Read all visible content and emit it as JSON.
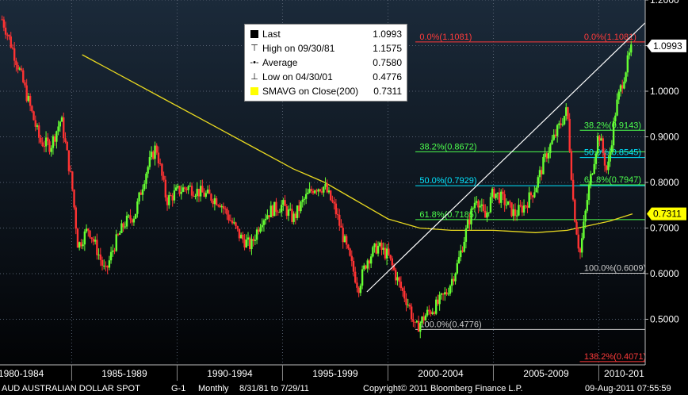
{
  "chart_data": {
    "type": "candlestick",
    "security": "AUD  AUSTRALIAN DOLLAR SPOT",
    "y_ticks": [
      "1.2000",
      "1.1000",
      "1.0000",
      "0.9000",
      "0.8000",
      "0.7000",
      "0.6000",
      "0.5000"
    ],
    "ylim": [
      0.4,
      1.2
    ],
    "x_ticks": [
      "1980-1984",
      "1985-1989",
      "1990-1994",
      "1995-1999",
      "2000-2004",
      "2005-2009",
      "2010-201"
    ],
    "legend": {
      "last": {
        "label": "Last",
        "value": "1.0993"
      },
      "high": {
        "label": "High on 09/30/81",
        "value": "1.1575"
      },
      "average": {
        "label": "Average",
        "value": "0.7580"
      },
      "low": {
        "label": "Low on 04/30/01",
        "value": "0.4776"
      },
      "sma": {
        "label": "SMAVG on Close(200)",
        "value": "0.7311"
      }
    },
    "price_series": [
      {
        "year": 1981.7,
        "value": 1.1575
      },
      {
        "year": 1982.0,
        "value": 1.12
      },
      {
        "year": 1982.5,
        "value": 1.05
      },
      {
        "year": 1983.0,
        "value": 0.97
      },
      {
        "year": 1983.5,
        "value": 0.89
      },
      {
        "year": 1984.0,
        "value": 0.88
      },
      {
        "year": 1984.5,
        "value": 0.94
      },
      {
        "year": 1985.0,
        "value": 0.8
      },
      {
        "year": 1985.3,
        "value": 0.66
      },
      {
        "year": 1985.8,
        "value": 0.7
      },
      {
        "year": 1986.3,
        "value": 0.64
      },
      {
        "year": 1986.6,
        "value": 0.6
      },
      {
        "year": 1987.0,
        "value": 0.66
      },
      {
        "year": 1987.5,
        "value": 0.71
      },
      {
        "year": 1988.0,
        "value": 0.73
      },
      {
        "year": 1988.5,
        "value": 0.82
      },
      {
        "year": 1989.0,
        "value": 0.88
      },
      {
        "year": 1989.5,
        "value": 0.76
      },
      {
        "year": 1990.0,
        "value": 0.78
      },
      {
        "year": 1990.5,
        "value": 0.79
      },
      {
        "year": 1991.0,
        "value": 0.78
      },
      {
        "year": 1991.5,
        "value": 0.77
      },
      {
        "year": 1992.0,
        "value": 0.76
      },
      {
        "year": 1992.5,
        "value": 0.72
      },
      {
        "year": 1993.0,
        "value": 0.68
      },
      {
        "year": 1993.5,
        "value": 0.66
      },
      {
        "year": 1994.0,
        "value": 0.72
      },
      {
        "year": 1994.5,
        "value": 0.74
      },
      {
        "year": 1995.0,
        "value": 0.75
      },
      {
        "year": 1995.5,
        "value": 0.72
      },
      {
        "year": 1996.0,
        "value": 0.76
      },
      {
        "year": 1996.5,
        "value": 0.79
      },
      {
        "year": 1997.0,
        "value": 0.79
      },
      {
        "year": 1997.5,
        "value": 0.74
      },
      {
        "year": 1998.0,
        "value": 0.66
      },
      {
        "year": 1998.6,
        "value": 0.57
      },
      {
        "year": 1999.0,
        "value": 0.63
      },
      {
        "year": 1999.5,
        "value": 0.66
      },
      {
        "year": 2000.0,
        "value": 0.64
      },
      {
        "year": 2000.5,
        "value": 0.58
      },
      {
        "year": 2001.0,
        "value": 0.53
      },
      {
        "year": 2001.3,
        "value": 0.4776
      },
      {
        "year": 2001.8,
        "value": 0.51
      },
      {
        "year": 2002.3,
        "value": 0.53
      },
      {
        "year": 2002.8,
        "value": 0.56
      },
      {
        "year": 2003.3,
        "value": 0.62
      },
      {
        "year": 2003.8,
        "value": 0.71
      },
      {
        "year": 2004.2,
        "value": 0.77
      },
      {
        "year": 2004.6,
        "value": 0.72
      },
      {
        "year": 2005.0,
        "value": 0.78
      },
      {
        "year": 2005.5,
        "value": 0.76
      },
      {
        "year": 2006.0,
        "value": 0.73
      },
      {
        "year": 2006.5,
        "value": 0.75
      },
      {
        "year": 2007.0,
        "value": 0.79
      },
      {
        "year": 2007.5,
        "value": 0.86
      },
      {
        "year": 2008.0,
        "value": 0.91
      },
      {
        "year": 2008.5,
        "value": 0.96
      },
      {
        "year": 2008.8,
        "value": 0.75
      },
      {
        "year": 2009.1,
        "value": 0.64
      },
      {
        "year": 2009.5,
        "value": 0.78
      },
      {
        "year": 2010.0,
        "value": 0.91
      },
      {
        "year": 2010.4,
        "value": 0.82
      },
      {
        "year": 2010.8,
        "value": 0.96
      },
      {
        "year": 2011.0,
        "value": 1.0
      },
      {
        "year": 2011.4,
        "value": 1.07
      },
      {
        "year": 2011.6,
        "value": 1.0993
      }
    ],
    "sma_series": [
      {
        "year": 1985.5,
        "value": 1.08
      },
      {
        "year": 1987.5,
        "value": 1.03
      },
      {
        "year": 1989.5,
        "value": 0.98
      },
      {
        "year": 1991.5,
        "value": 0.93
      },
      {
        "year": 1993.5,
        "value": 0.88
      },
      {
        "year": 1995.5,
        "value": 0.83
      },
      {
        "year": 1997.0,
        "value": 0.8
      },
      {
        "year": 1998.5,
        "value": 0.76
      },
      {
        "year": 2000.0,
        "value": 0.72
      },
      {
        "year": 2001.5,
        "value": 0.7
      },
      {
        "year": 2003.0,
        "value": 0.695
      },
      {
        "year": 2005.0,
        "value": 0.695
      },
      {
        "year": 2007.0,
        "value": 0.69
      },
      {
        "year": 2008.5,
        "value": 0.695
      },
      {
        "year": 2009.5,
        "value": 0.705
      },
      {
        "year": 2010.5,
        "value": 0.715
      },
      {
        "year": 2011.6,
        "value": 0.7311
      }
    ],
    "trendline": {
      "start": {
        "year": 1999.0,
        "value": 0.56
      },
      "end": {
        "year": 2012.2,
        "value": 1.15
      }
    },
    "fib_levels": [
      {
        "label": "0.0%(1.1081)",
        "value": 1.1081,
        "from_year": 2001.3,
        "to_year": 2012.2,
        "color": "#ff3b3b",
        "label_year": 2001.5
      },
      {
        "label": "0.0%(1.1081)",
        "value": 1.1081,
        "from_year": 2009.1,
        "to_year": 2012.2,
        "color": "#ff3b3b",
        "label_year": 2009.3
      },
      {
        "label": "38.2%(0.8672)",
        "value": 0.8672,
        "from_year": 2001.3,
        "to_year": 2012.2,
        "color": "#4dff4d",
        "label_year": 2001.5
      },
      {
        "label": "50.0%(0.7929)",
        "value": 0.7929,
        "from_year": 2001.3,
        "to_year": 2012.2,
        "color": "#00e5ff",
        "label_year": 2001.5
      },
      {
        "label": "61.8%(0.7185)",
        "value": 0.7185,
        "from_year": 2001.3,
        "to_year": 2012.2,
        "color": "#4dff4d",
        "label_year": 2001.5
      },
      {
        "label": "100.0%(0.4776)",
        "value": 0.4776,
        "from_year": 2001.3,
        "to_year": 2012.2,
        "color": "#cccccc",
        "label_year": 2001.5
      },
      {
        "label": "38.2%(0.9143)",
        "value": 0.9143,
        "from_year": 2009.1,
        "to_year": 2012.2,
        "color": "#4dff4d",
        "label_year": 2009.3
      },
      {
        "label": "50.0%(0.8545)",
        "value": 0.8545,
        "from_year": 2009.1,
        "to_year": 2012.2,
        "color": "#00e5ff",
        "label_year": 2009.3
      },
      {
        "label": "61.8%(0.7947)",
        "value": 0.7947,
        "from_year": 2009.1,
        "to_year": 2012.2,
        "color": "#4dff4d",
        "label_year": 2009.3
      },
      {
        "label": "100.0%(0.6009)",
        "value": 0.6009,
        "from_year": 2009.1,
        "to_year": 2012.2,
        "color": "#cccccc",
        "label_year": 2009.3
      },
      {
        "label": "138.2%(0.4071)",
        "value": 0.4071,
        "from_year": 2009.1,
        "to_year": 2012.2,
        "color": "#ff3b3b",
        "label_year": 2009.3
      }
    ],
    "last_badge": {
      "value": "1.0993",
      "numeric": 1.0993
    },
    "sma_badge": {
      "value": "0.7311",
      "numeric": 0.7311
    }
  },
  "footer": {
    "security": "AUD  AUSTRALIAN DOLLAR SPOT",
    "graph_id": "G-1",
    "period": "Monthly",
    "range": "8/31/81 to 7/29/11",
    "copyright": "Copyright© 2011 Bloomberg Finance L.P.",
    "timestamp": "09-Aug-2011 07:55:59"
  },
  "colors": {
    "background_top": "#1b2a3a",
    "background_bottom": "#000000",
    "up": "#66ff33",
    "down": "#ff3333",
    "sma": "#e8d820",
    "trendline": "#ffffff",
    "last_badge": "#ffffff",
    "sma_badge": "#ffff00"
  }
}
